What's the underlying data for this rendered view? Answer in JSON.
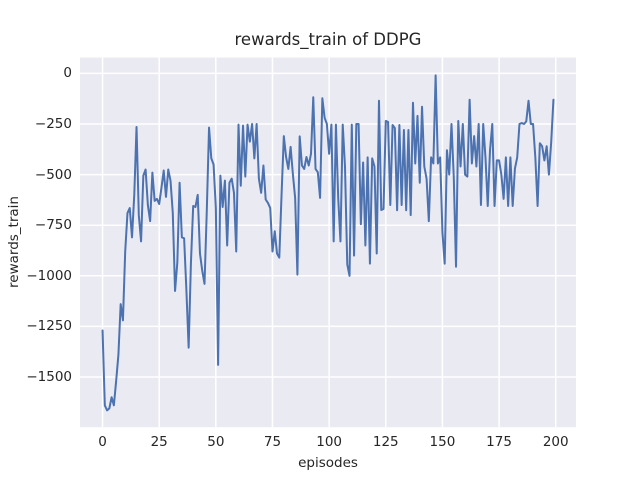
{
  "chart_data": {
    "type": "line",
    "title": "rewards_train of DDPG",
    "xlabel": "episodes",
    "ylabel": "rewards_train",
    "legend_position": "none",
    "grid": true,
    "xlim": [
      -9.95,
      208.95
    ],
    "ylim": [
      -1748,
      78
    ],
    "xticks": [
      0,
      25,
      50,
      75,
      100,
      125,
      150,
      175,
      200
    ],
    "yticks": [
      0,
      -250,
      -500,
      -750,
      -1000,
      -1250,
      -1500
    ],
    "colors": {
      "line": "#4c72b0",
      "plot_background": "#eaeaf2",
      "figure_background": "#ffffff",
      "grid": "#ffffff",
      "text": "#262626"
    },
    "x_is_episode_index": true,
    "series": [
      {
        "name": "rewards_train",
        "values": [
          -1270,
          -1640,
          -1665,
          -1655,
          -1600,
          -1640,
          -1520,
          -1390,
          -1140,
          -1220,
          -880,
          -690,
          -665,
          -810,
          -600,
          -265,
          -700,
          -830,
          -505,
          -475,
          -650,
          -730,
          -490,
          -630,
          -620,
          -645,
          -565,
          -480,
          -610,
          -475,
          -530,
          -690,
          -1075,
          -935,
          -540,
          -810,
          -815,
          -1070,
          -1355,
          -940,
          -655,
          -660,
          -600,
          -890,
          -975,
          -1040,
          -680,
          -268,
          -420,
          -450,
          -665,
          -1440,
          -505,
          -660,
          -530,
          -850,
          -540,
          -520,
          -590,
          -880,
          -253,
          -555,
          -258,
          -510,
          -253,
          -337,
          -250,
          -420,
          -250,
          -520,
          -590,
          -455,
          -623,
          -640,
          -665,
          -880,
          -780,
          -890,
          -910,
          -600,
          -310,
          -413,
          -472,
          -363,
          -498,
          -615,
          -994,
          -311,
          -455,
          -472,
          -413,
          -455,
          -397,
          -118,
          -472,
          -488,
          -615,
          -123,
          -219,
          -250,
          -397,
          -253,
          -830,
          -253,
          -615,
          -830,
          -253,
          -460,
          -943,
          -1000,
          -253,
          -900,
          -250,
          -250,
          -745,
          -440,
          -850,
          -415,
          -940,
          -420,
          -460,
          -890,
          -135,
          -675,
          -670,
          -235,
          -240,
          -650,
          -255,
          -270,
          -676,
          -255,
          -650,
          -280,
          -676,
          -280,
          -700,
          -145,
          -445,
          -210,
          -540,
          -165,
          -460,
          -520,
          -730,
          -415,
          -445,
          -10,
          -445,
          -415,
          -785,
          -940,
          -380,
          -500,
          -250,
          -510,
          -955,
          -235,
          -460,
          -250,
          -500,
          -510,
          -130,
          -445,
          -310,
          -460,
          -250,
          -650,
          -250,
          -415,
          -655,
          -380,
          -250,
          -655,
          -430,
          -430,
          -500,
          -620,
          -415,
          -655,
          -415,
          -655,
          -470,
          -415,
          -250,
          -245,
          -250,
          -237,
          -135,
          -250,
          -250,
          -415,
          -655,
          -345,
          -360,
          -430,
          -360,
          -500,
          -340,
          -130
        ]
      }
    ]
  }
}
